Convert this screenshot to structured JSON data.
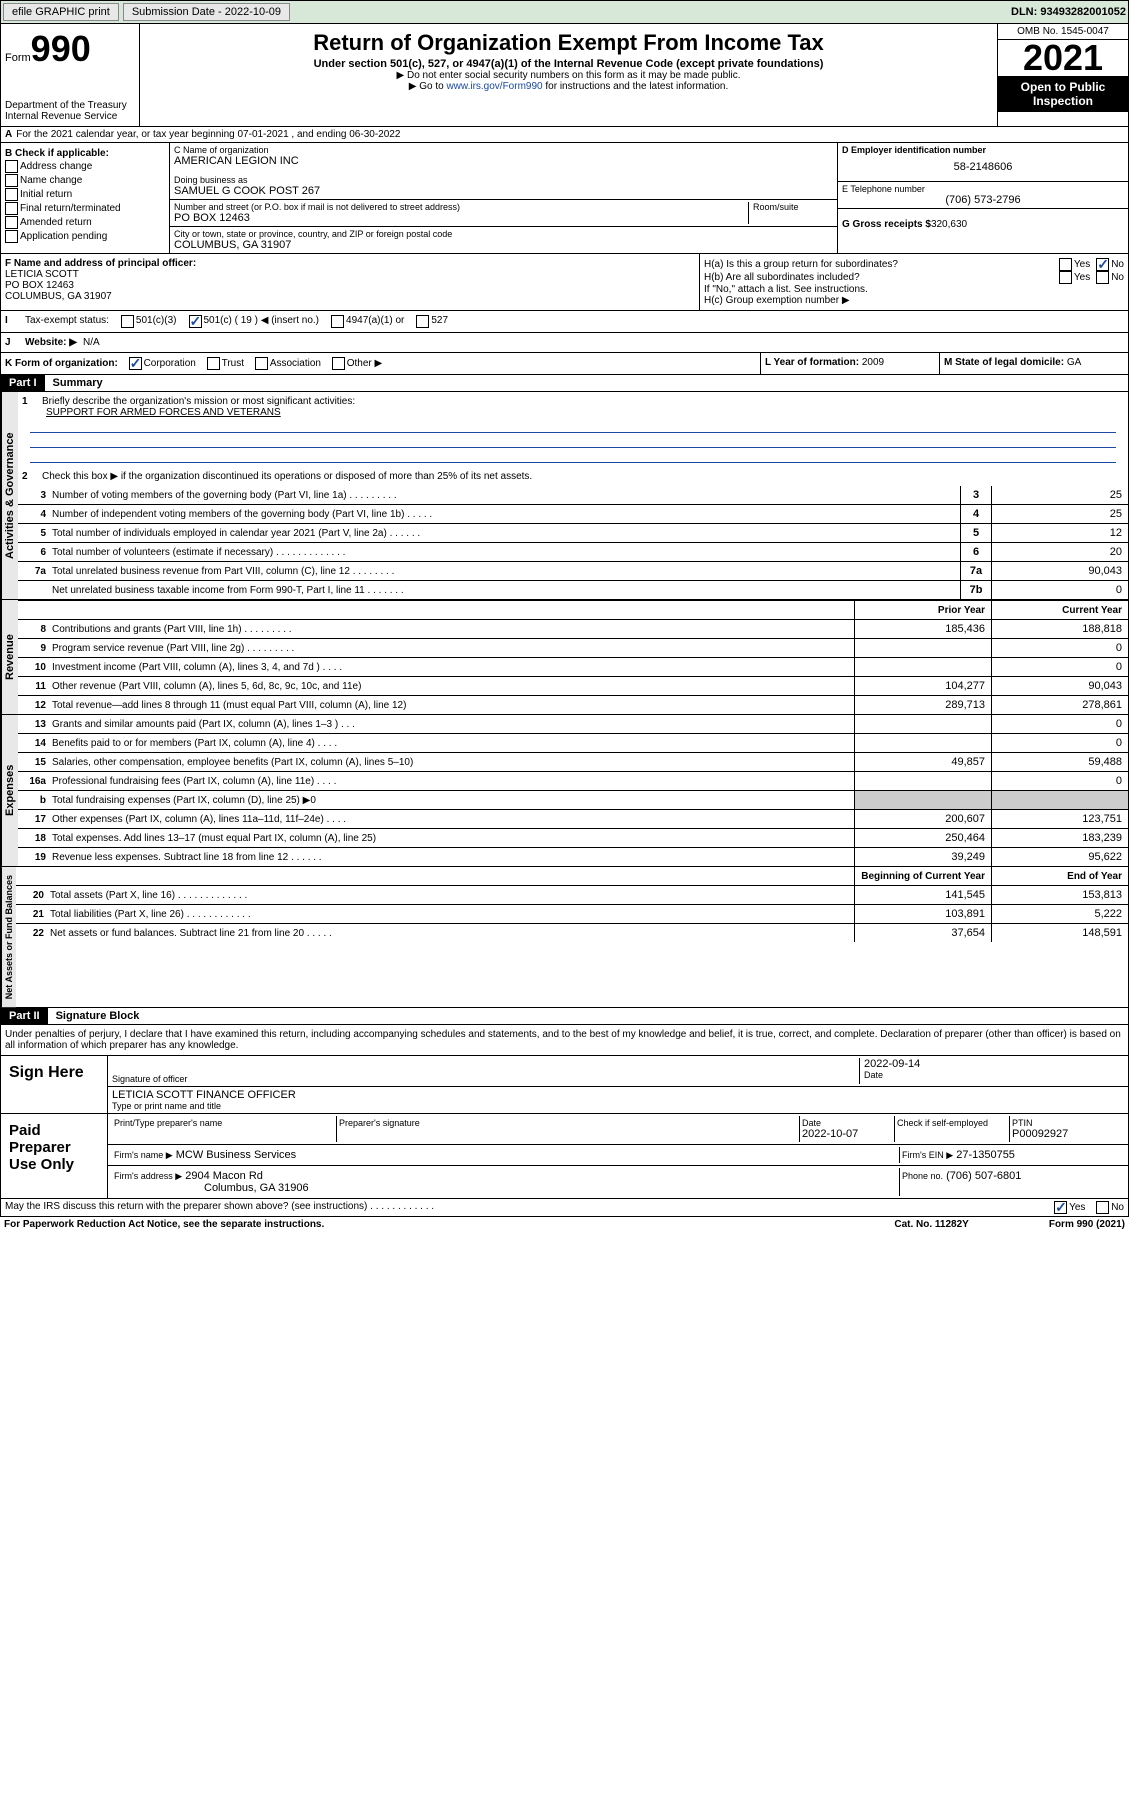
{
  "top": {
    "efile": "efile GRAPHIC print",
    "submission_label": "Submission Date - 2022-10-09",
    "dln": "DLN: 93493282001052"
  },
  "header": {
    "form_label": "Form",
    "form_num": "990",
    "dept": "Department of the Treasury",
    "irs": "Internal Revenue Service",
    "title": "Return of Organization Exempt From Income Tax",
    "subtitle": "Under section 501(c), 527, or 4947(a)(1) of the Internal Revenue Code (except private foundations)",
    "note1": "▶ Do not enter social security numbers on this form as it may be made public.",
    "note2_pre": "▶ Go to ",
    "note2_link": "www.irs.gov/Form990",
    "note2_post": " for instructions and the latest information.",
    "omb": "OMB No. 1545-0047",
    "year": "2021",
    "inspect": "Open to Public Inspection"
  },
  "lineA": "For the 2021 calendar year, or tax year beginning 07-01-2021    , and ending 06-30-2022",
  "colB": {
    "header": "B Check if applicable:",
    "items": [
      "Address change",
      "Name change",
      "Initial return",
      "Final return/terminated",
      "Amended return",
      "Application pending"
    ]
  },
  "colC": {
    "name_label": "C Name of organization",
    "name": "AMERICAN LEGION INC",
    "dba_label": "Doing business as",
    "dba": "SAMUEL G COOK POST 267",
    "addr_label": "Number and street (or P.O. box if mail is not delivered to street address)",
    "room_label": "Room/suite",
    "addr": "PO BOX 12463",
    "city_label": "City or town, state or province, country, and ZIP or foreign postal code",
    "city": "COLUMBUS, GA  31907"
  },
  "colD": {
    "ein_label": "D Employer identification number",
    "ein": "58-2148606",
    "phone_label": "E Telephone number",
    "phone": "(706) 573-2796",
    "gross_label": "G Gross receipts $",
    "gross": "320,630"
  },
  "lineF": {
    "label": "F  Name and address of principal officer:",
    "name": "LETICIA SCOTT",
    "addr": "PO BOX 12463",
    "city": "COLUMBUS, GA  31907"
  },
  "lineH": {
    "ha": "H(a)  Is this a group return for subordinates?",
    "hb": "H(b)  Are all subordinates included?",
    "hb_note": "If \"No,\" attach a list. See instructions.",
    "hc": "H(c)  Group exemption number ▶",
    "yes": "Yes",
    "no": "No"
  },
  "lineI": {
    "label": "Tax-exempt status:",
    "opts": [
      "501(c)(3)",
      "501(c) ( 19 ) ◀ (insert no.)",
      "4947(a)(1) or",
      "527"
    ]
  },
  "lineJ": {
    "label": "Website: ▶",
    "value": "N/A"
  },
  "lineK": {
    "label": "K Form of organization:",
    "opts": [
      "Corporation",
      "Trust",
      "Association",
      "Other ▶"
    ]
  },
  "lineL": {
    "label": "L Year of formation:",
    "value": "2009"
  },
  "lineM": {
    "label": "M State of legal domicile:",
    "value": "GA"
  },
  "part1": {
    "header": "Part I",
    "title": "Summary"
  },
  "summary": {
    "q1": "Briefly describe the organization's mission or most significant activities:",
    "mission": "SUPPORT FOR ARMED FORCES AND VETERANS",
    "q2": "Check this box ▶       if the organization discontinued its operations or disposed of more than 25% of its net assets.",
    "q3": "Number of voting members of the governing body (Part VI, line 1a)   .    .    .    .    .    .    .    .    .",
    "q4": "Number of independent voting members of the governing body (Part VI, line 1b)  .    .    .    .    .",
    "q5": "Total number of individuals employed in calendar year 2021 (Part V, line 2a)  .    .    .    .    .    .",
    "q6": "Total number of volunteers (estimate if necessary)  .    .    .    .    .    .    .    .    .    .    .    .    .",
    "q7a": "Total unrelated business revenue from Part VIII, column (C), line 12  .    .    .    .    .    .    .    .",
    "q7b": "Net unrelated business taxable income from Form 990-T, Part I, line 11  .    .    .    .    .    .    .",
    "v3": "25",
    "v4": "25",
    "v5": "12",
    "v6": "20",
    "v7a": "90,043",
    "v7b": "0"
  },
  "revenue": {
    "header_prior": "Prior Year",
    "header_current": "Current Year",
    "lines": [
      {
        "n": "8",
        "d": "Contributions and grants (Part VIII, line 1h)   .    .    .    .    .    .    .    .    .",
        "p": "185,436",
        "c": "188,818"
      },
      {
        "n": "9",
        "d": "Program service revenue (Part VIII, line 2g)   .    .    .    .    .    .    .    .    .",
        "p": "",
        "c": "0"
      },
      {
        "n": "10",
        "d": "Investment income (Part VIII, column (A), lines 3, 4, and 7d )   .    .    .    .",
        "p": "",
        "c": "0"
      },
      {
        "n": "11",
        "d": "Other revenue (Part VIII, column (A), lines 5, 6d, 8c, 9c, 10c, and 11e)",
        "p": "104,277",
        "c": "90,043"
      },
      {
        "n": "12",
        "d": "Total revenue—add lines 8 through 11 (must equal Part VIII, column (A), line 12)",
        "p": "289,713",
        "c": "278,861"
      }
    ]
  },
  "expenses": {
    "lines": [
      {
        "n": "13",
        "d": "Grants and similar amounts paid (Part IX, column (A), lines 1–3 )   .    .    .",
        "p": "",
        "c": "0"
      },
      {
        "n": "14",
        "d": "Benefits paid to or for members (Part IX, column (A), line 4)  .    .    .    .",
        "p": "",
        "c": "0"
      },
      {
        "n": "15",
        "d": "Salaries, other compensation, employee benefits (Part IX, column (A), lines 5–10)",
        "p": "49,857",
        "c": "59,488"
      },
      {
        "n": "16a",
        "d": "Professional fundraising fees (Part IX, column (A), line 11e)   .    .    .    .",
        "p": "",
        "c": "0"
      },
      {
        "n": "b",
        "d": "Total fundraising expenses (Part IX, column (D), line 25) ▶0",
        "p": "grey",
        "c": "grey"
      },
      {
        "n": "17",
        "d": "Other expenses (Part IX, column (A), lines 11a–11d, 11f–24e)   .    .    .    .",
        "p": "200,607",
        "c": "123,751"
      },
      {
        "n": "18",
        "d": "Total expenses. Add lines 13–17 (must equal Part IX, column (A), line 25)",
        "p": "250,464",
        "c": "183,239"
      },
      {
        "n": "19",
        "d": "Revenue less expenses. Subtract line 18 from line 12   .    .    .    .    .    .",
        "p": "39,249",
        "c": "95,622"
      }
    ]
  },
  "assets": {
    "header_begin": "Beginning of Current Year",
    "header_end": "End of Year",
    "lines": [
      {
        "n": "20",
        "d": "Total assets (Part X, line 16)  .    .    .    .    .    .    .    .    .    .    .    .    .",
        "p": "141,545",
        "c": "153,813"
      },
      {
        "n": "21",
        "d": "Total liabilities (Part X, line 26)  .    .    .    .    .    .    .    .    .    .    .    .",
        "p": "103,891",
        "c": "5,222"
      },
      {
        "n": "22",
        "d": "Net assets or fund balances. Subtract line 21 from line 20   .    .    .    .    .",
        "p": "37,654",
        "c": "148,591"
      }
    ]
  },
  "vert_labels": {
    "activities": "Activities & Governance",
    "revenue": "Revenue",
    "expenses": "Expenses",
    "assets": "Net Assets or Fund Balances"
  },
  "part2": {
    "header": "Part II",
    "title": "Signature Block"
  },
  "sig": {
    "declaration": "Under penalties of perjury, I declare that I have examined this return, including accompanying schedules and statements, and to the best of my knowledge and belief, it is true, correct, and complete. Declaration of preparer (other than officer) is based on all information of which preparer has any knowledge.",
    "sign_here": "Sign Here",
    "sig_officer": "Signature of officer",
    "date": "Date",
    "sig_date": "2022-09-14",
    "officer_name": "LETICIA SCOTT FINANCE OFFICER",
    "type_name": "Type or print name and title",
    "paid": "Paid Preparer Use Only",
    "prep_name_label": "Print/Type preparer's name",
    "prep_sig_label": "Preparer's signature",
    "prep_date_label": "Date",
    "prep_date": "2022-10-07",
    "check_label": "Check        if self-employed",
    "ptin_label": "PTIN",
    "ptin": "P00092927",
    "firm_name_label": "Firm's name    ▶",
    "firm_name": "MCW Business Services",
    "firm_ein_label": "Firm's EIN ▶",
    "firm_ein": "27-1350755",
    "firm_addr_label": "Firm's address ▶",
    "firm_addr": "2904 Macon Rd",
    "firm_city": "Columbus, GA  31906",
    "firm_phone_label": "Phone no.",
    "firm_phone": "(706) 507-6801",
    "discuss": "May the IRS discuss this return with the preparer shown above? (see instructions)   .    .    .    .    .    .    .    .    .    .    .    ."
  },
  "footer": {
    "paperwork": "For Paperwork Reduction Act Notice, see the separate instructions.",
    "cat": "Cat. No. 11282Y",
    "form": "Form 990 (2021)"
  }
}
